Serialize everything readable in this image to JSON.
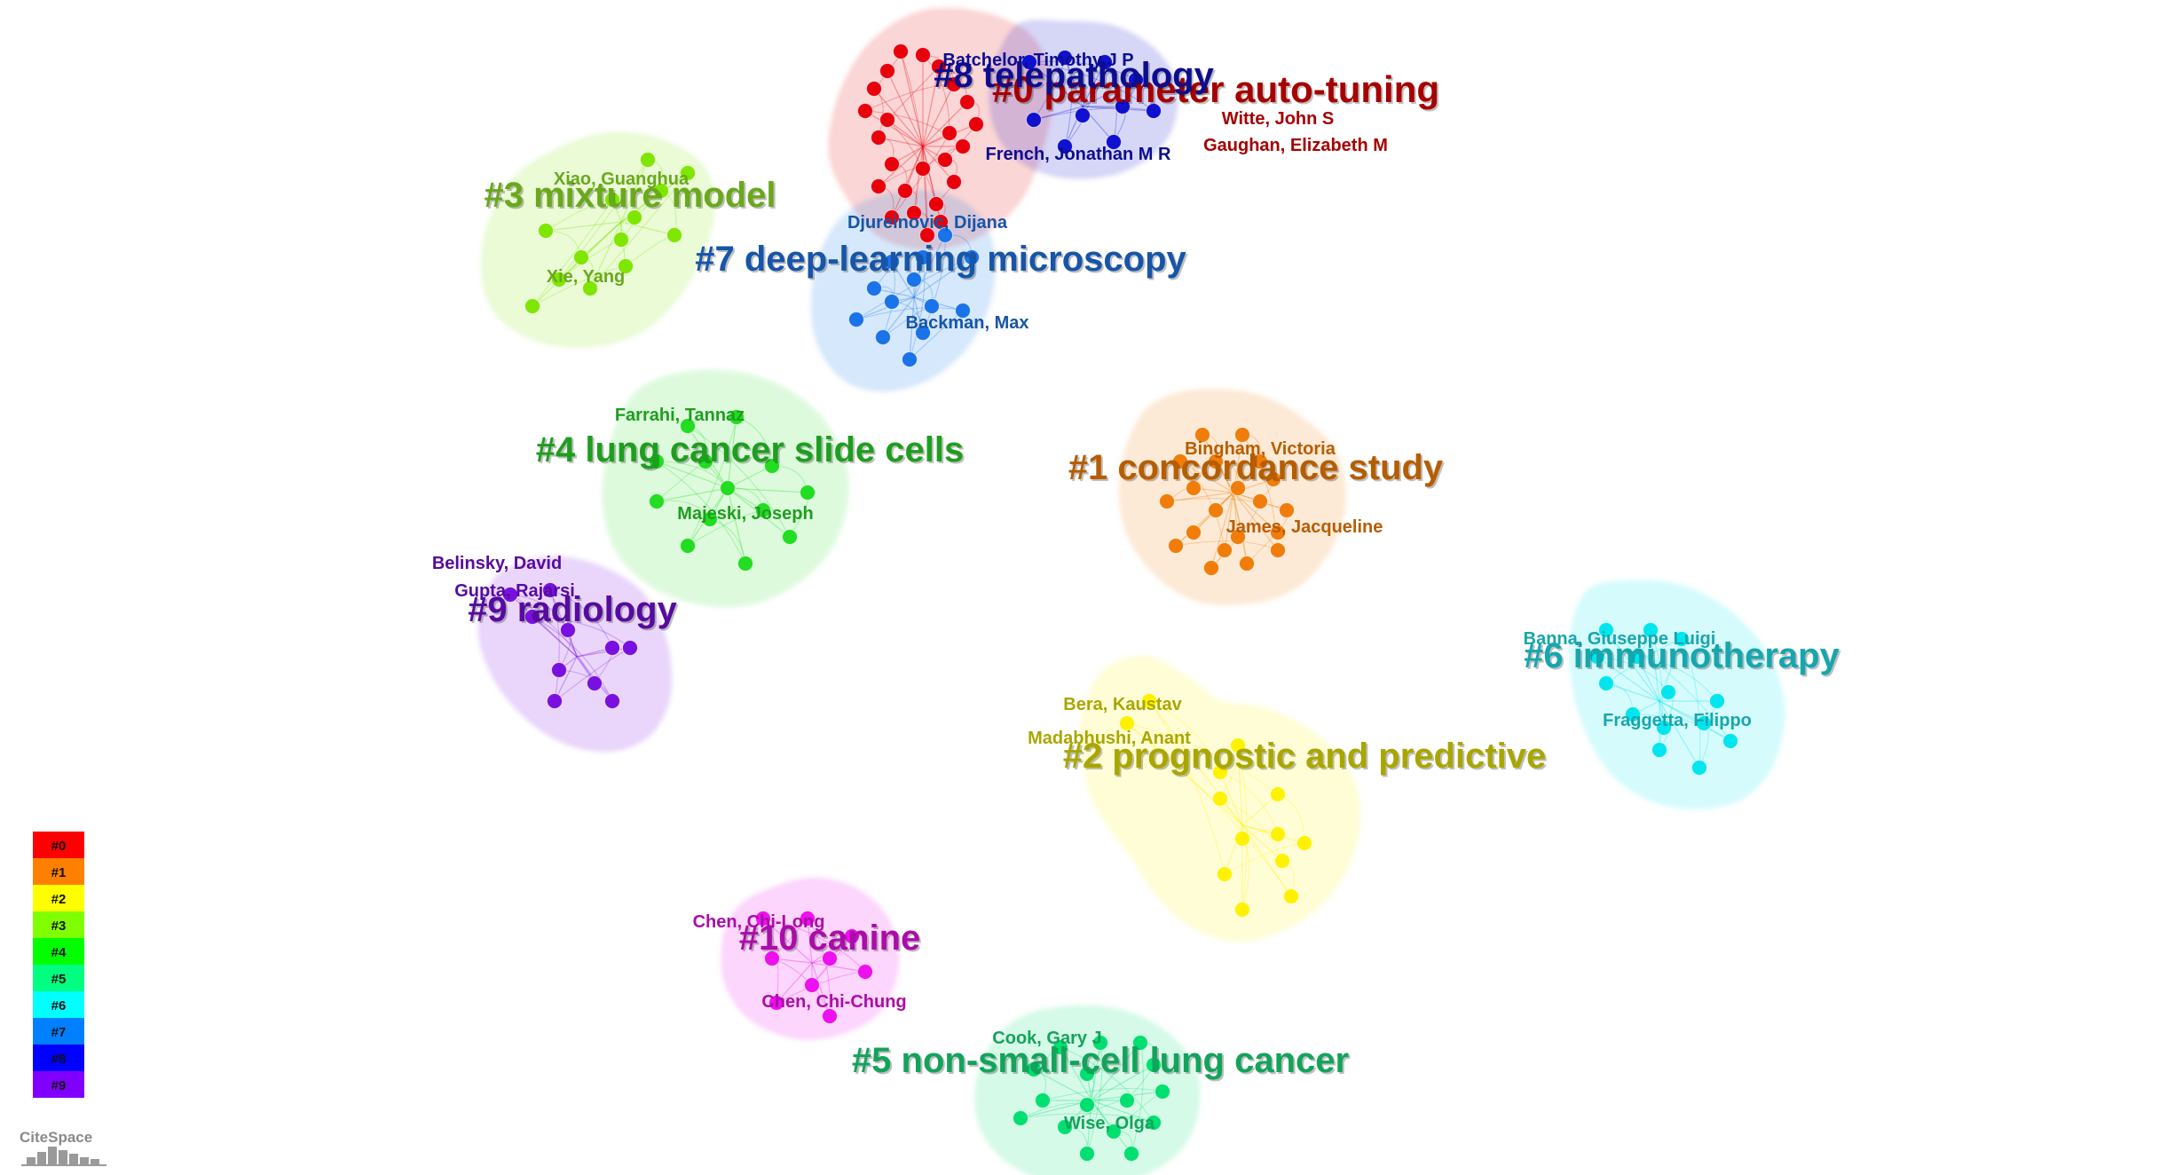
{
  "clusters": [
    {
      "id": "c0",
      "label": "#0 parameter auto-tuning",
      "color": "#e8000b",
      "label_color": "#a60000",
      "authors": [
        "Witte, John S",
        "Gaughan, Elizabeth M"
      ]
    },
    {
      "id": "c1",
      "label": "#1 concordance study",
      "color": "#f07d0a",
      "label_color": "#b65d00",
      "authors": [
        "Bingham, Victoria",
        "James, Jacqueline"
      ]
    },
    {
      "id": "c2",
      "label": "#2 prognostic and predictive",
      "color": "#fff200",
      "label_color": "#a9a600",
      "authors": [
        "Bera, Kaustav",
        "Madabhushi, Anant"
      ]
    },
    {
      "id": "c3",
      "label": "#3 mixture model",
      "color": "#7fe600",
      "label_color": "#6aa81c",
      "authors": [
        "Xiao, Guanghua",
        "Xie, Yang"
      ]
    },
    {
      "id": "c4",
      "label": "#4 lung cancer slide cells",
      "color": "#22dd22",
      "label_color": "#1e9e1e",
      "authors": [
        "Farrahi, Tannaz",
        "Majeski, Joseph"
      ]
    },
    {
      "id": "c5",
      "label": "#5 non-small-cell lung cancer",
      "color": "#00e070",
      "label_color": "#13a35b",
      "authors": [
        "Cook, Gary J",
        "Wise, Olga"
      ]
    },
    {
      "id": "c6",
      "label": "#6 immunotherapy",
      "color": "#00e6ee",
      "label_color": "#17a6ad",
      "authors": [
        "Banna, Giuseppe Luigi",
        "Fraggetta, Filippo"
      ]
    },
    {
      "id": "c7",
      "label": "#7 deep-learning microscopy",
      "color": "#1a73e8",
      "label_color": "#1655a8",
      "authors": [
        "Djureinovic, Dijana",
        "Backman, Max"
      ]
    },
    {
      "id": "c8",
      "label": "#8 telepathology",
      "color": "#1010d0",
      "label_color": "#0d0d90",
      "authors": [
        "Batchelor, Timothy J P",
        "French, Jonathan M R"
      ]
    },
    {
      "id": "c9",
      "label": "#9 radiology",
      "color": "#7a10e0",
      "label_color": "#560ba0",
      "authors": [
        "Belinsky, David",
        "Gupta, Rajarsi"
      ]
    },
    {
      "id": "c10",
      "label": "#10 canine",
      "color": "#ee10ee",
      "label_color": "#aa0da8",
      "authors": [
        "Chen, Chi-Long",
        "Chen, Chi-Chung"
      ]
    }
  ],
  "legend": {
    "items": [
      {
        "label": "#0",
        "color": "#ff0000"
      },
      {
        "label": "#1",
        "color": "#ff8000"
      },
      {
        "label": "#2",
        "color": "#ffff00"
      },
      {
        "label": "#3",
        "color": "#80ff00"
      },
      {
        "label": "#4",
        "color": "#00ff00"
      },
      {
        "label": "#5",
        "color": "#00ff80"
      },
      {
        "label": "#6",
        "color": "#00ffff"
      },
      {
        "label": "#7",
        "color": "#0080ff"
      },
      {
        "label": "#8",
        "color": "#0000ff"
      },
      {
        "label": "#9",
        "color": "#8000ff"
      }
    ]
  },
  "logo": {
    "text": "CiteSpace"
  }
}
